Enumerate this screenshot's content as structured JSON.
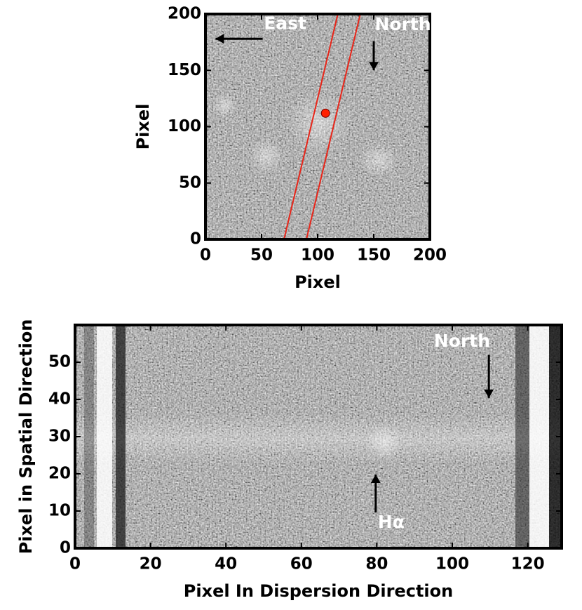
{
  "chart_data": [
    {
      "type": "image",
      "xlabel": "Pixel",
      "ylabel": "Pixel",
      "xlim": [
        0,
        200
      ],
      "ylim": [
        0,
        200
      ],
      "xticks": [
        0,
        50,
        100,
        150,
        200
      ],
      "yticks": [
        0,
        50,
        100,
        150,
        200
      ],
      "marker": {
        "x": 107,
        "y": 112,
        "color": "#ff2000"
      },
      "lines": [
        {
          "x": [
            70,
            118
          ],
          "y": [
            0,
            200
          ],
          "color": "#e8261a"
        },
        {
          "x": [
            90,
            138
          ],
          "y": [
            0,
            200
          ],
          "color": "#e8261a"
        }
      ],
      "annotations": [
        {
          "text": "East",
          "x": 71,
          "y": 191,
          "xytail": [
            51,
            178
          ],
          "xy": [
            9,
            178
          ]
        },
        {
          "text": "North",
          "x": 176,
          "y": 190,
          "xytail": [
            150,
            176
          ],
          "xy": [
            150,
            150
          ]
        }
      ]
    },
    {
      "type": "image",
      "xlabel": "Pixel In Dispersion Direction",
      "ylabel": "Pixel in Spatial Direction",
      "xlim": [
        0,
        129
      ],
      "ylim": [
        0,
        60
      ],
      "xticks": [
        0,
        20,
        40,
        60,
        80,
        100,
        120
      ],
      "yticks": [
        0,
        10,
        20,
        30,
        40,
        50
      ],
      "annotations": [
        {
          "text": "North",
          "x": 102.6,
          "y": 55.5,
          "xytail": [
            109.7,
            52
          ],
          "xy": [
            109.7,
            40.4
          ]
        },
        {
          "text": "Hα",
          "x": 83.8,
          "y": 6.8,
          "xytail": [
            79.7,
            9.6
          ],
          "xy": [
            79.7,
            19.8
          ]
        }
      ]
    }
  ]
}
